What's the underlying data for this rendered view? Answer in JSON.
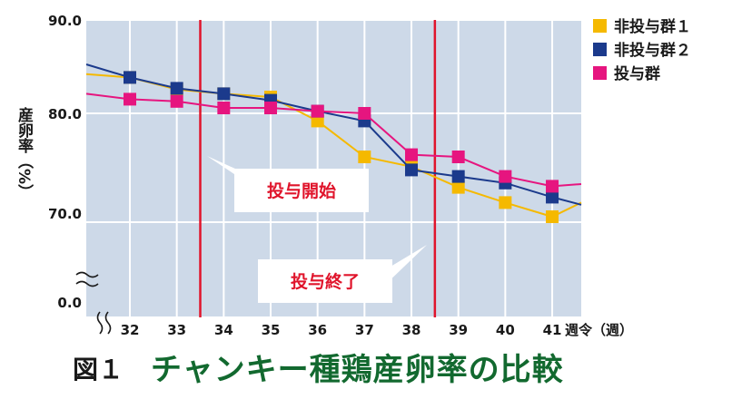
{
  "colors": {
    "plot_bg": "#cdd9e8",
    "grid": "#ffffff",
    "marker_line": "#e0142b",
    "series1": "#f5b900",
    "series2": "#1b3a8c",
    "series3": "#e6157f",
    "title_green": "#12692f"
  },
  "chart_data": {
    "type": "line",
    "ylabel": "産卵率（%）",
    "xlabel": "週令（週）",
    "y_ticks": [
      "90.0",
      "80.0",
      "70.0",
      "0.0"
    ],
    "x_ticks": [
      "32",
      "33",
      "34",
      "35",
      "36",
      "37",
      "38",
      "39",
      "40",
      "41"
    ],
    "x_axis_label": "週令（週）",
    "ylim": [
      68.5,
      90.0
    ],
    "y_axis_break": true,
    "grid": true,
    "legend_position": "right",
    "x": [
      32,
      33,
      34,
      35,
      36,
      37,
      38,
      39,
      40,
      41
    ],
    "series": [
      {
        "name": "非投与群１",
        "values": [
          83.3,
          82.2,
          81.8,
          81.5,
          79.3,
          76.0,
          75.1,
          73.2,
          71.8,
          70.5
        ]
      },
      {
        "name": "非投与群２",
        "values": [
          83.3,
          82.3,
          81.8,
          81.2,
          80.2,
          79.3,
          74.8,
          74.2,
          73.6,
          72.3
        ]
      },
      {
        "name": "投与群",
        "values": [
          81.3,
          81.1,
          80.5,
          80.5,
          80.2,
          80.0,
          76.2,
          76.0,
          74.2,
          73.3
        ]
      }
    ],
    "vertical_lines": [
      33.5,
      38.5
    ],
    "annotations": [
      {
        "text": "投与開始",
        "at_week": 33.5
      },
      {
        "text": "投与終了",
        "at_week": 38.5
      }
    ]
  },
  "caption": {
    "figure_number": "図１",
    "title": "チャンキー種鶏産卵率の比較"
  }
}
